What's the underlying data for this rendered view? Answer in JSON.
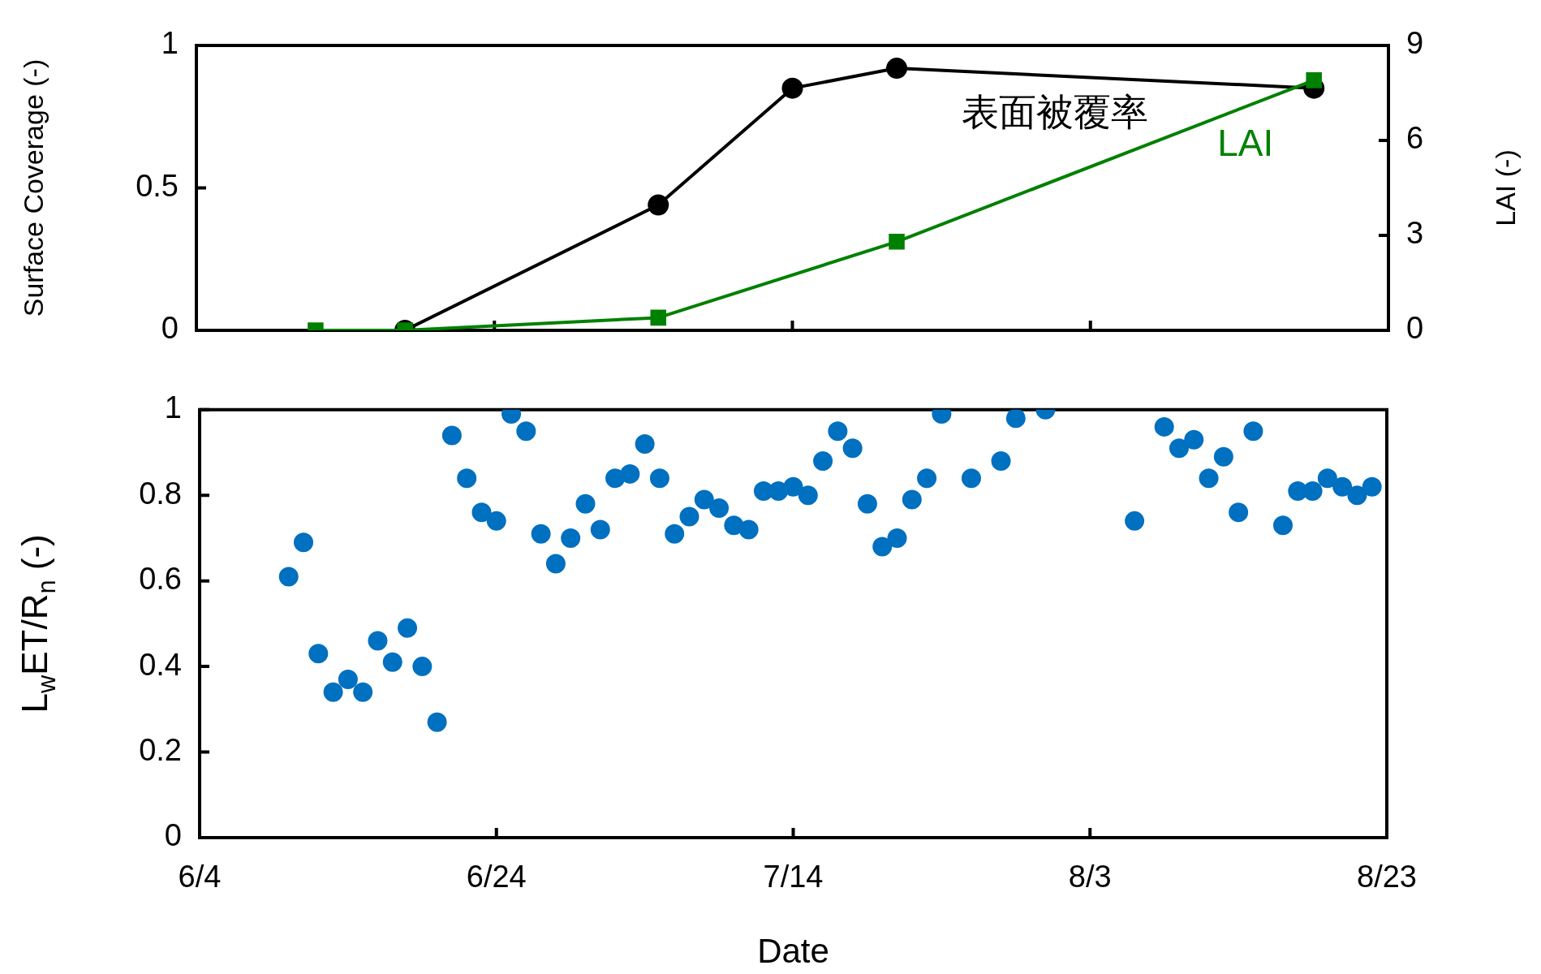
{
  "chart_data": [
    {
      "type": "line",
      "ylabel": "Surface Coverage (-)",
      "y2label": "LAI (-)",
      "xlim": [
        "--06-04",
        "--08-23"
      ],
      "xticks": [
        {
          "value": "--06-04",
          "label": null
        },
        {
          "value": "--06-24",
          "label": null
        },
        {
          "value": "--07-14",
          "label": null
        },
        {
          "value": "--08-03",
          "label": null
        },
        {
          "value": "--08-23",
          "label": null
        }
      ],
      "ylim": [
        0,
        1
      ],
      "yticks": [
        0,
        0.5,
        1
      ],
      "y2lim": [
        0,
        9
      ],
      "y2ticks": [
        0,
        3,
        6,
        9
      ],
      "tick_labels": "y",
      "grid": false,
      "legend": false,
      "series": [
        {
          "name": "表面被覆率",
          "color": "#000000",
          "marker": "circle",
          "axis": "y",
          "x": [
            "--06-18",
            "--07-05",
            "--07-14",
            "--07-21",
            "--08-18"
          ],
          "values": [
            0,
            0.44,
            0.85,
            0.92,
            0.85
          ]
        },
        {
          "name": "LAI",
          "color": "#008000",
          "marker": "square",
          "axis": "y2",
          "x": [
            "--06-12",
            "--06-18",
            "--07-05",
            "--07-21",
            "--08-18"
          ],
          "values": [
            0,
            0,
            0.4,
            2.8,
            7.9
          ]
        }
      ]
    },
    {
      "type": "scatter",
      "xlabel": "Date",
      "ylabel": "L$_{w}$ET/R$_{n}$ (-)",
      "xlim": [
        "--06-04",
        "--08-23"
      ],
      "xticks": [
        {
          "value": "--06-04",
          "label": "6/4"
        },
        {
          "value": "--06-24",
          "label": "6/24"
        },
        {
          "value": "--07-14",
          "label": "7/14"
        },
        {
          "value": "--08-03",
          "label": "8/3"
        },
        {
          "value": "--08-23",
          "label": "8/23"
        }
      ],
      "ylim": [
        0,
        1
      ],
      "yticks": [
        0,
        0.2,
        0.4,
        0.6,
        0.8,
        1
      ],
      "grid": false,
      "legend": false,
      "marker": "circle",
      "series": [
        {
          "color": "#0070c0",
          "x": [
            "--06-10",
            "--06-11",
            "--06-12",
            "--06-13",
            "--06-14",
            "--06-15",
            "--06-16",
            "--06-17",
            "--06-18",
            "--06-19",
            "--06-20",
            "--06-21",
            "--06-22",
            "--06-23",
            "--06-24",
            "--06-25",
            "--06-26",
            "--06-27",
            "--06-28",
            "--06-29",
            "--06-30",
            "--07-01",
            "--07-02",
            "--07-03",
            "--07-04",
            "--07-05",
            "--07-06",
            "--07-07",
            "--07-08",
            "--07-09",
            "--07-10",
            "--07-11",
            "--07-12",
            "--07-13",
            "--07-14",
            "--07-15",
            "--07-16",
            "--07-17",
            "--07-18",
            "--07-19",
            "--07-20",
            "--07-21",
            "--07-22",
            "--07-23",
            "--07-24",
            "--07-26",
            "--07-28",
            "--07-29",
            "--07-31",
            "--08-06",
            "--08-08",
            "--08-09",
            "--08-10",
            "--08-11",
            "--08-12",
            "--08-13",
            "--08-14",
            "--08-16",
            "--08-17",
            "--08-18",
            "--08-19",
            "--08-20",
            "--08-21",
            "--08-22"
          ],
          "values": [
            0.61,
            0.69,
            0.43,
            0.34,
            0.37,
            0.34,
            0.46,
            0.41,
            0.49,
            0.4,
            0.27,
            0.94,
            0.84,
            0.76,
            0.74,
            0.99,
            0.95,
            0.71,
            0.64,
            0.7,
            0.78,
            0.72,
            0.84,
            0.85,
            0.92,
            0.84,
            0.71,
            0.75,
            0.79,
            0.77,
            0.73,
            0.72,
            0.81,
            0.81,
            0.82,
            0.8,
            0.88,
            0.95,
            0.91,
            0.78,
            0.68,
            0.7,
            0.79,
            0.84,
            0.99,
            0.84,
            0.88,
            0.98,
            1.0,
            0.74,
            0.96,
            0.91,
            0.93,
            0.84,
            0.89,
            0.76,
            0.95,
            0.73,
            0.81,
            0.81,
            0.84,
            0.82,
            0.8,
            0.82
          ]
        }
      ]
    }
  ]
}
